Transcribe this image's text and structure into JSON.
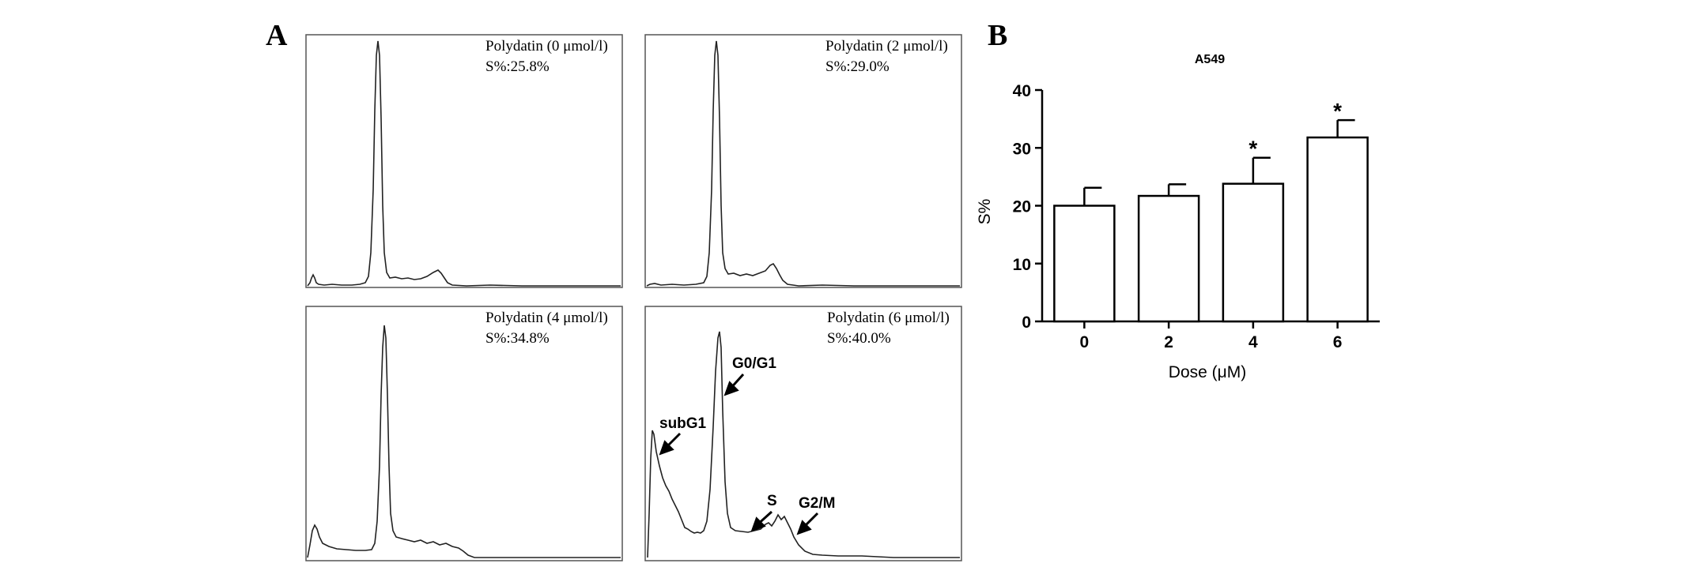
{
  "panels": {
    "a": "A",
    "b": "B"
  },
  "histograms": [
    {
      "title": "Polydatin (0 μmol/l)",
      "s_text": "S%:25.8%"
    },
    {
      "title": "Polydatin (2 μmol/l)",
      "s_text": "S%:29.0%"
    },
    {
      "title": "Polydatin (4 μmol/l)",
      "s_text": "S%:34.8%"
    },
    {
      "title": "Polydatin (6 μmol/l)",
      "s_text": "S%:40.0%",
      "phases": [
        "subG1",
        "G0/G1",
        "S",
        "G2/M"
      ]
    }
  ],
  "chart_data": {
    "type": "bar",
    "title": "A549",
    "xlabel": "Dose (μM)",
    "ylabel": "S%",
    "categories": [
      "0",
      "2",
      "4",
      "6"
    ],
    "values": [
      20,
      21.7,
      23.8,
      31.8
    ],
    "errors": [
      3.1,
      2.0,
      4.5,
      3.0
    ],
    "significance": [
      "",
      "",
      "*",
      "*"
    ],
    "ylim": [
      0,
      40
    ],
    "yticks": [
      0,
      10,
      20,
      30,
      40
    ],
    "bar_fill": "#ffffff",
    "bar_stroke": "#000000"
  }
}
